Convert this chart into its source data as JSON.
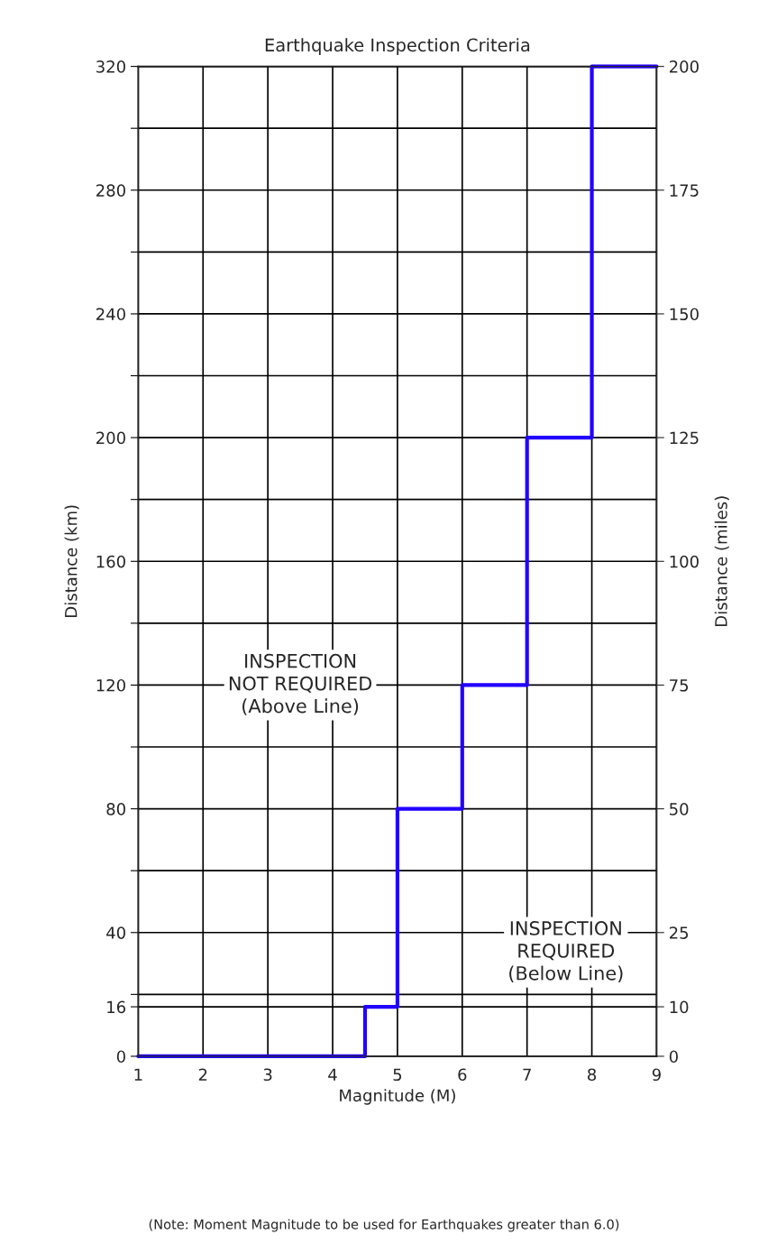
{
  "chart_data": {
    "type": "step",
    "title": "Earthquake Inspection Criteria",
    "xlabel": "Magnitude (M)",
    "ylabel": "Distance (km)",
    "y2label": "Distance (miles)",
    "x": [
      1,
      4.5,
      5,
      6,
      7,
      8,
      9
    ],
    "series": [
      {
        "color": "#2200ff",
        "values": [
          0,
          16,
          80,
          120,
          200,
          320,
          320
        ]
      }
    ],
    "xlim": [
      1,
      9
    ],
    "xticks": [
      1,
      2,
      3,
      4,
      5,
      6,
      7,
      8,
      9
    ],
    "ylim": [
      0,
      320
    ],
    "yticks": [
      0,
      16,
      {
        "value": 20,
        "label": null
      },
      40,
      {
        "value": 60,
        "label": null
      },
      80,
      {
        "value": 100,
        "label": null
      },
      120,
      {
        "value": 140,
        "label": null
      },
      160,
      {
        "value": 180,
        "label": null
      },
      200,
      {
        "value": 220,
        "label": null
      },
      240,
      {
        "value": 260,
        "label": null
      },
      280,
      {
        "value": 300,
        "label": null
      },
      320
    ],
    "y2lim": [
      0,
      200
    ],
    "y2ticks": [
      0,
      10,
      25,
      50,
      75,
      100,
      125,
      150,
      175,
      200
    ],
    "grid": true,
    "line_style": "solid",
    "marker": "none",
    "annotations": [
      "INSPECTION\nNOT REQUIRED\n(Above Line)",
      "INSPECTION\nREQUIRED\n(Below Line)",
      "(Note: Moment Magnitude to be used for Earthquakes greater than 6.0)"
    ]
  }
}
